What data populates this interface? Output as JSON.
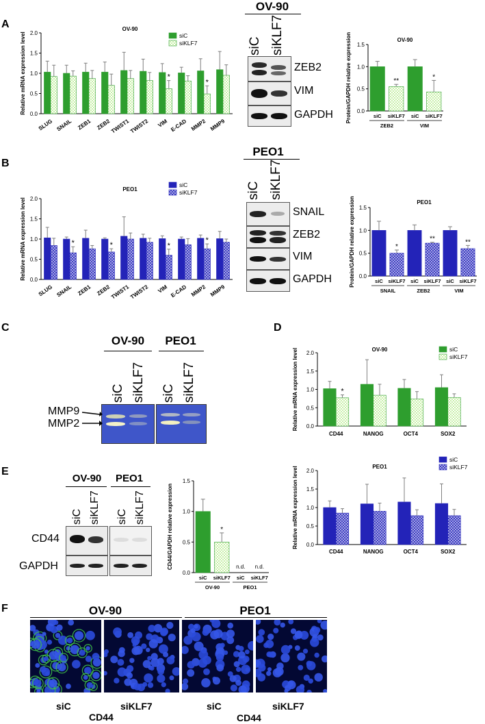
{
  "panels": {
    "A": "A",
    "B": "B",
    "C": "C",
    "D": "D",
    "E": "E",
    "F": "F"
  },
  "colors": {
    "green": "#2e9e2e",
    "green_light": "#c8f0a8",
    "blue": "#2323b8",
    "blue_light": "#c4c4f0",
    "err": "#7d7d7d"
  },
  "chart_data": [
    {
      "id": "A",
      "type": "bar",
      "title": "OV-90",
      "ylabel": "Relative mRNA expression level",
      "ylim": [
        0,
        2.0
      ],
      "yticks": [
        "0.0",
        "0.5",
        "1.0",
        "1.5",
        "2.0"
      ],
      "categories": [
        "SLUG",
        "SNAIL",
        "ZEB1",
        "ZEB2",
        "TWIST1",
        "TWIST2",
        "VIM",
        "E-CAD",
        "MMP2",
        "MMP9"
      ],
      "series": [
        {
          "name": "siC",
          "style": "solid",
          "values": [
            1.03,
            1.0,
            1.03,
            1.03,
            1.07,
            1.05,
            1.02,
            1.01,
            1.06,
            1.09
          ],
          "errors": [
            0.27,
            0.2,
            0.22,
            0.25,
            0.45,
            0.3,
            0.22,
            0.14,
            0.3,
            0.45
          ]
        },
        {
          "name": "siKLF7",
          "style": "hatch",
          "values": [
            0.92,
            0.93,
            0.87,
            0.7,
            0.87,
            0.82,
            0.62,
            0.81,
            0.49,
            0.95
          ],
          "errors": [
            0.28,
            0.13,
            0.2,
            0.28,
            0.2,
            0.2,
            0.2,
            0.13,
            0.2,
            0.26
          ]
        }
      ],
      "stars": [
        "",
        "",
        "",
        "",
        "",
        "",
        "*",
        "",
        "*",
        ""
      ],
      "theme": "green"
    },
    {
      "id": "B",
      "type": "bar",
      "title": "PEO1",
      "ylabel": "Relative mRNA expression level",
      "ylim": [
        0,
        2.0
      ],
      "yticks": [
        "0.0",
        "0.5",
        "1.0",
        "1.5",
        "2.0"
      ],
      "categories": [
        "SLUG",
        "SNAIL",
        "ZEB1",
        "ZEB2",
        "TWIST1",
        "TWIST2",
        "VIM",
        "E-CAD",
        "MMP2",
        "MMP9"
      ],
      "series": [
        {
          "name": "siC",
          "style": "solid",
          "values": [
            1.03,
            1.0,
            1.02,
            1.0,
            1.07,
            1.02,
            1.01,
            1.0,
            1.02,
            1.01
          ],
          "errors": [
            0.26,
            0.05,
            0.2,
            0.03,
            0.48,
            0.1,
            0.07,
            0.05,
            0.08,
            0.18
          ]
        },
        {
          "name": "siKLF7",
          "style": "hatch",
          "values": [
            0.84,
            0.66,
            0.76,
            0.68,
            1.0,
            0.92,
            0.6,
            0.86,
            0.76,
            0.92
          ],
          "errors": [
            0.18,
            0.15,
            0.08,
            0.08,
            0.15,
            0.1,
            0.15,
            0.15,
            0.12,
            0.08
          ]
        }
      ],
      "stars": [
        "",
        "*",
        "",
        "*",
        "",
        "",
        "*",
        "",
        "*",
        ""
      ],
      "theme": "blue"
    },
    {
      "id": "A2",
      "type": "bar",
      "title": "OV-90",
      "ylabel": "Protein/GAPDH relative expression",
      "ylim": [
        0,
        1.5
      ],
      "yticks": [
        "0.0",
        "0.5",
        "1.0",
        "1.5"
      ],
      "categories": [
        "siC",
        "siKLF7",
        "siC",
        "siKLF7"
      ],
      "groups": [
        {
          "label": "ZEB2",
          "span": [
            0,
            1
          ]
        },
        {
          "label": "VIM",
          "span": [
            2,
            3
          ]
        }
      ],
      "values": [
        1.0,
        0.55,
        1.0,
        0.43
      ],
      "errors": [
        0.12,
        0.05,
        0.16,
        0.26
      ],
      "styles": [
        "solid",
        "hatch",
        "solid",
        "hatch"
      ],
      "stars": [
        "",
        "**",
        "",
        "*"
      ],
      "theme": "green"
    },
    {
      "id": "B2",
      "type": "bar",
      "title": "PEO1",
      "ylabel": "Protein/GAPDH relative expression",
      "ylim": [
        0,
        1.5
      ],
      "yticks": [
        "0.0",
        "0.5",
        "1.0",
        "1.5"
      ],
      "categories": [
        "siC",
        "siKLF7",
        "siC",
        "siKLF7",
        "siC",
        "siKLF7"
      ],
      "groups": [
        {
          "label": "SNAIL",
          "span": [
            0,
            1
          ]
        },
        {
          "label": "ZEB2",
          "span": [
            2,
            3
          ]
        },
        {
          "label": "VIM",
          "span": [
            4,
            5
          ]
        }
      ],
      "values": [
        1.0,
        0.5,
        1.0,
        0.72,
        1.0,
        0.6
      ],
      "errors": [
        0.2,
        0.07,
        0.12,
        0.02,
        0.08,
        0.07
      ],
      "styles": [
        "solid",
        "hatch",
        "solid",
        "hatch",
        "solid",
        "hatch"
      ],
      "stars": [
        "",
        "*",
        "",
        "**",
        "",
        "**"
      ],
      "theme": "blue"
    },
    {
      "id": "D1",
      "type": "bar",
      "title": "OV-90",
      "ylabel": "Relative mRNA expression level",
      "ylim": [
        0,
        2.0
      ],
      "yticks": [
        "0.0",
        "0.5",
        "1.0",
        "1.5",
        "2.0"
      ],
      "categories": [
        "CD44",
        "NANOG",
        "OCT4",
        "SOX2"
      ],
      "series": [
        {
          "name": "siC",
          "style": "solid",
          "values": [
            1.02,
            1.14,
            1.03,
            1.05
          ],
          "errors": [
            0.2,
            0.67,
            0.24,
            0.35
          ]
        },
        {
          "name": "siKLF7",
          "style": "hatch",
          "values": [
            0.77,
            0.84,
            0.74,
            0.78
          ],
          "errors": [
            0.08,
            0.3,
            0.2,
            0.1
          ]
        }
      ],
      "stars": [
        "*",
        "",
        "",
        ""
      ],
      "theme": "green"
    },
    {
      "id": "D2",
      "type": "bar",
      "title": "PEO1",
      "ylabel": "Relative mRNA expression level",
      "ylim": [
        0,
        2.0
      ],
      "yticks": [
        "0.0",
        "0.5",
        "1.0",
        "1.5",
        "2.0"
      ],
      "categories": [
        "CD44",
        "NANOG",
        "OCT4",
        "SOX2"
      ],
      "series": [
        {
          "name": "siC",
          "style": "solid",
          "values": [
            1.0,
            1.1,
            1.15,
            1.11
          ],
          "errors": [
            0.18,
            0.53,
            0.65,
            0.53
          ]
        },
        {
          "name": "siKLF7",
          "style": "hatch",
          "values": [
            0.85,
            0.9,
            0.78,
            0.78
          ],
          "errors": [
            0.12,
            0.22,
            0.16,
            0.17
          ]
        }
      ],
      "stars": [
        "",
        "",
        "",
        ""
      ],
      "theme": "blue"
    },
    {
      "id": "E2",
      "type": "bar",
      "title": "",
      "ylabel": "CD44/GAPDH relative expression",
      "ylim": [
        0,
        1.5
      ],
      "yticks": [
        "0.0",
        "0.5",
        "1.0",
        "1.5"
      ],
      "categories": [
        "siC",
        "siKLF7",
        "siC",
        "siKLF7"
      ],
      "groups": [
        {
          "label": "OV-90",
          "span": [
            0,
            1
          ]
        },
        {
          "label": "PEO1",
          "span": [
            2,
            3
          ]
        }
      ],
      "values": [
        1.0,
        0.5,
        0,
        0
      ],
      "errors": [
        0.2,
        0.15,
        0,
        0
      ],
      "styles": [
        "solid",
        "hatch",
        "none",
        "none"
      ],
      "stars": [
        "",
        "*",
        "n.d.",
        "n.d."
      ],
      "theme": "green"
    }
  ],
  "blots": {
    "A": {
      "title": "OV-90",
      "lanes": [
        "siC",
        "siKLF7"
      ],
      "rows": [
        "ZEB2",
        "VIM",
        "GAPDH"
      ]
    },
    "B": {
      "title": "PEO1",
      "lanes": [
        "siC",
        "siKLF7"
      ],
      "rows": [
        "SNAIL",
        "ZEB2",
        "VIM",
        "GAPDH"
      ]
    },
    "C": {
      "titles": [
        "OV-90",
        "PEO1"
      ],
      "lanes": [
        "siC",
        "siKLF7",
        "siC",
        "siKLF7"
      ],
      "markers": [
        "MMP9",
        "MMP2"
      ]
    },
    "E": {
      "titles": [
        "OV-90",
        "PEO1"
      ],
      "lanes": [
        "siC",
        "siKLF7",
        "siC",
        "siKLF7"
      ],
      "rows": [
        "CD44",
        "GAPDH"
      ]
    }
  },
  "figF": {
    "titles": [
      "OV-90",
      "PEO1"
    ],
    "labels": [
      "siC",
      "siKLF7",
      "siC",
      "siKLF7"
    ],
    "sub": [
      "CD44",
      "CD44"
    ]
  }
}
